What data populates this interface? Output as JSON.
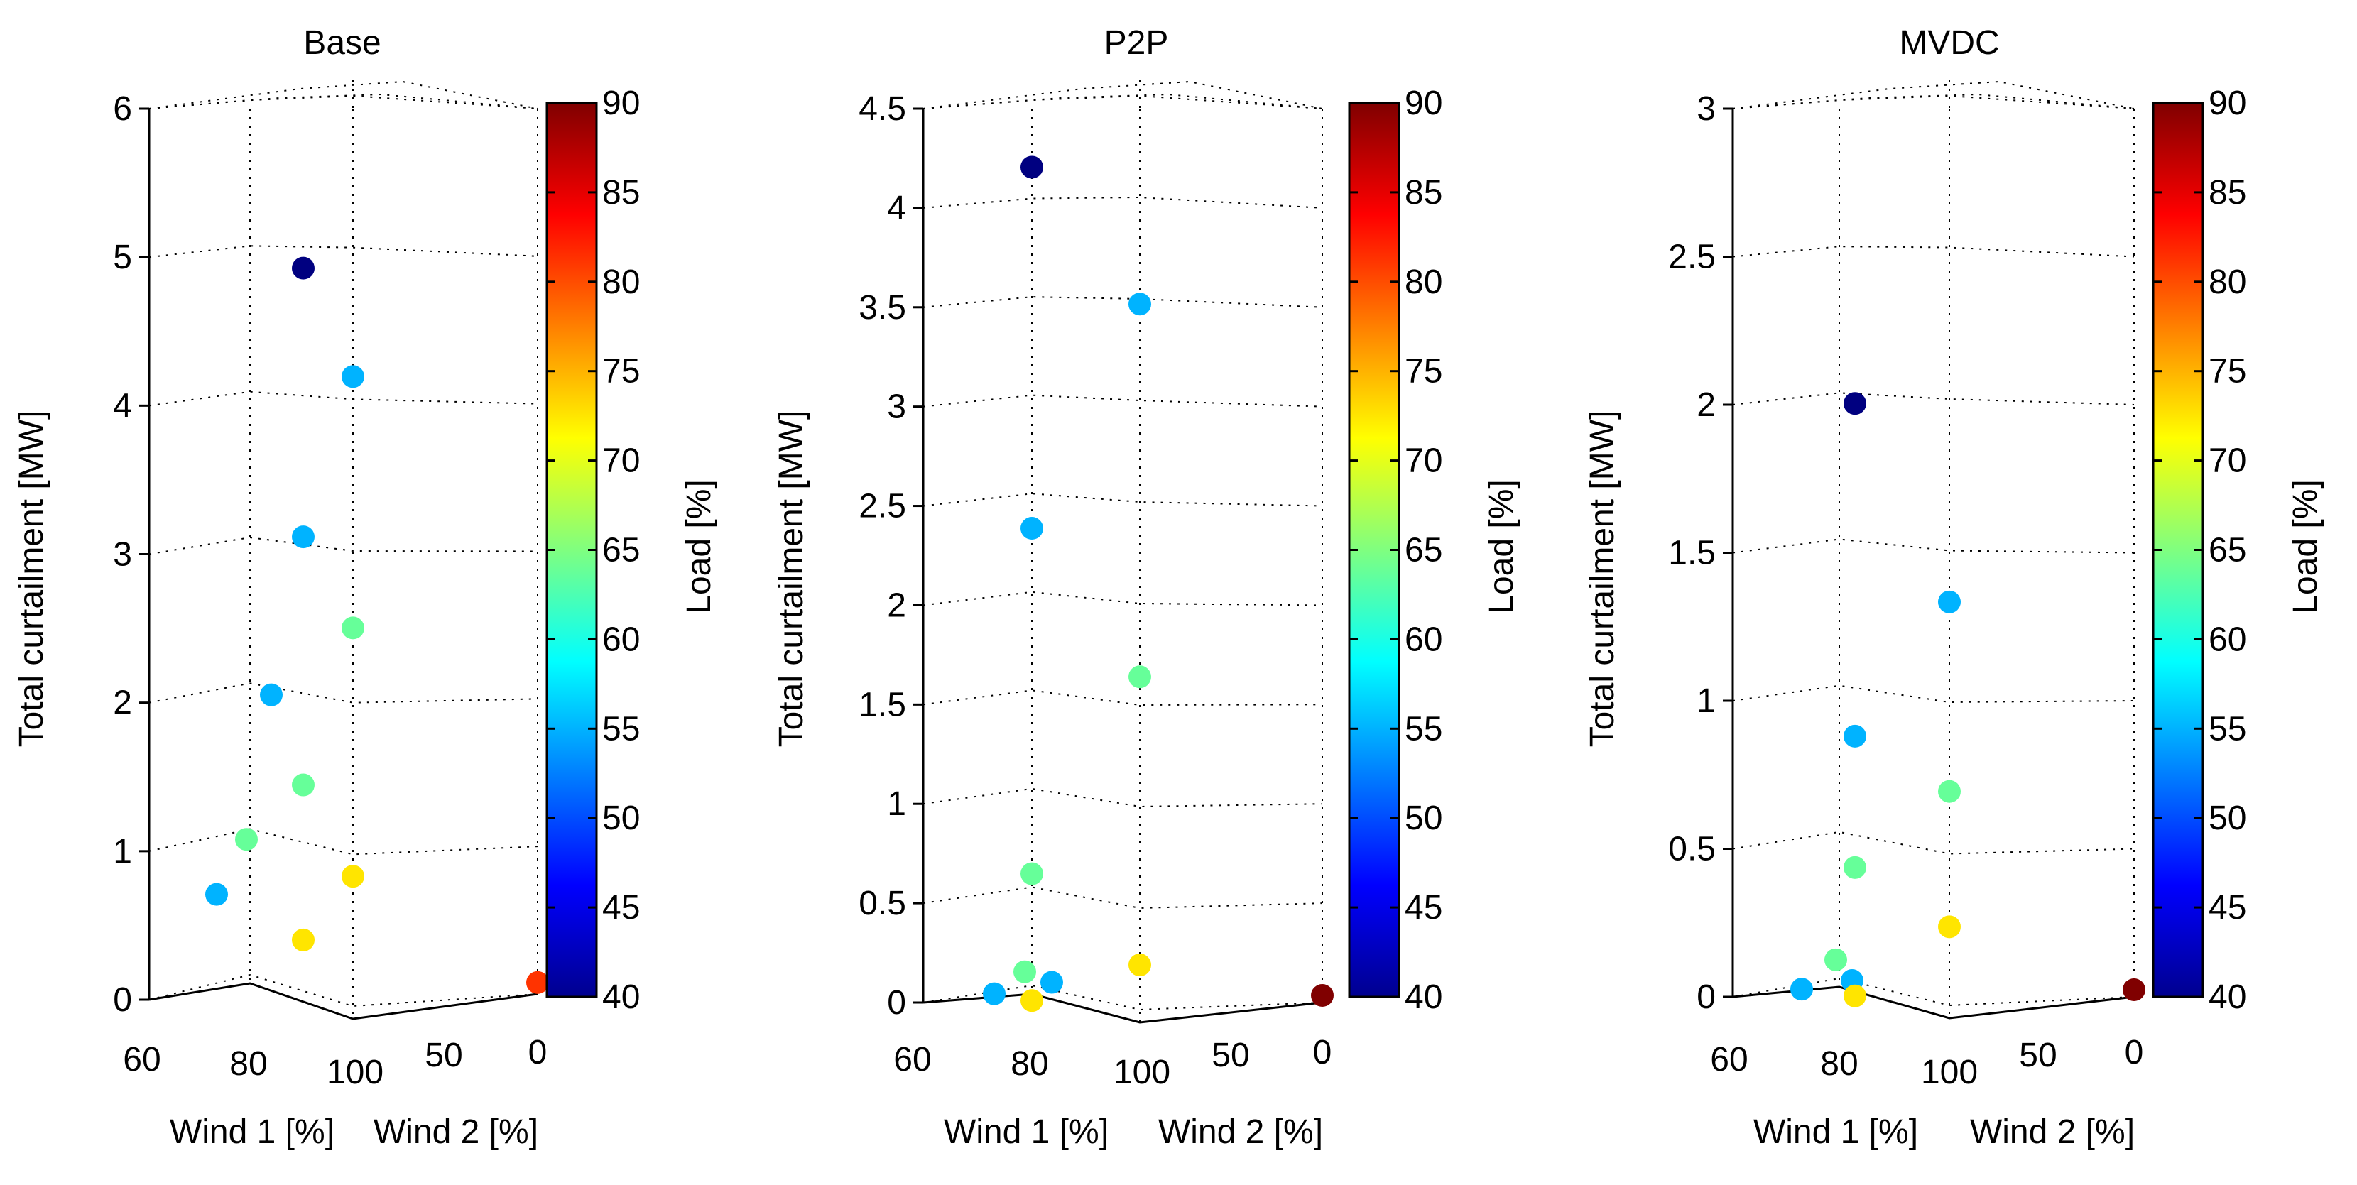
{
  "chart_data": [
    {
      "type": "scatter",
      "projection": "3d",
      "title": "Base",
      "zlabel": "Total curtailment [MW]",
      "xlabel": "Wind 1 [%]",
      "ylabel": "Wind 2 [%]",
      "colorbar_label": "Load [%]",
      "colormap": "jet",
      "zlim": [
        0,
        6
      ],
      "zticks": [
        "0",
        "1",
        "2",
        "3",
        "4",
        "5",
        "6"
      ],
      "wind1_ticks": [
        "60",
        "80",
        "100"
      ],
      "wind2_ticks": [
        "100",
        "50",
        "0"
      ],
      "colorbar_ticks": [
        "40",
        "45",
        "50",
        "55",
        "60",
        "65",
        "70",
        "75",
        "80",
        "85",
        "90"
      ],
      "clim": [
        40,
        90
      ],
      "points": [
        {
          "wind1": 80,
          "wind2": 100,
          "curtailment": 4.92,
          "load": 40
        },
        {
          "wind1": 100,
          "wind2": 100,
          "curtailment": 4.22,
          "load": 50
        },
        {
          "wind1": 80,
          "wind2": 100,
          "curtailment": 3.1,
          "load": 50
        },
        {
          "wind1": 100,
          "wind2": 100,
          "curtailment": 2.55,
          "load": 60
        },
        {
          "wind1": 80,
          "wind2": 75,
          "curtailment": 1.98,
          "load": 50
        },
        {
          "wind1": 80,
          "wind2": 100,
          "curtailment": 1.42,
          "load": 60
        },
        {
          "wind1": 80,
          "wind2": 50,
          "curtailment": 0.95,
          "load": 60
        },
        {
          "wind1": 100,
          "wind2": 100,
          "curtailment": 0.9,
          "load": 70
        },
        {
          "wind1": 80,
          "wind2": 25,
          "curtailment": 0.6,
          "load": 50
        },
        {
          "wind1": 80,
          "wind2": 100,
          "curtailment": 0.37,
          "load": 70
        },
        {
          "wind1": 100,
          "wind2": 0,
          "curtailment": 0.03,
          "load": 80
        }
      ]
    },
    {
      "type": "scatter",
      "projection": "3d",
      "title": "P2P",
      "zlabel": "Total curtailment [MW]",
      "xlabel": "Wind 1 [%]",
      "ylabel": "Wind 2 [%]",
      "colorbar_label": "Load [%]",
      "colormap": "jet",
      "zlim": [
        0,
        4.5
      ],
      "zticks": [
        "0",
        "0.5",
        "1",
        "1.5",
        "2",
        "2.5",
        "3",
        "3.5",
        "4",
        "4.5"
      ],
      "wind1_ticks": [
        "60",
        "80",
        "100"
      ],
      "wind2_ticks": [
        "100",
        "50",
        "0"
      ],
      "colorbar_ticks": [
        "40",
        "45",
        "50",
        "55",
        "60",
        "65",
        "70",
        "75",
        "80",
        "85",
        "90"
      ],
      "clim": [
        40,
        90
      ],
      "points": [
        {
          "wind1": 80,
          "wind2": 100,
          "curtailment": 4.2,
          "load": 40
        },
        {
          "wind1": 100,
          "wind2": 100,
          "curtailment": 3.53,
          "load": 50
        },
        {
          "wind1": 80,
          "wind2": 100,
          "curtailment": 2.35,
          "load": 50
        },
        {
          "wind1": 100,
          "wind2": 100,
          "curtailment": 1.68,
          "load": 60
        },
        {
          "wind1": 80,
          "wind2": 100,
          "curtailment": 0.58,
          "load": 60
        },
        {
          "wind1": 100,
          "wind2": 100,
          "curtailment": 0.25,
          "load": 70
        },
        {
          "wind1": 80,
          "wind2": 50,
          "curtailment": 0.08,
          "load": 60
        },
        {
          "wind1": 80,
          "wind2": 60,
          "curtailment": 0.05,
          "load": 50
        },
        {
          "wind1": 80,
          "wind2": 25,
          "curtailment": -0.02,
          "load": 50
        },
        {
          "wind1": 80,
          "wind2": 100,
          "curtailment": -0.07,
          "load": 70
        },
        {
          "wind1": 100,
          "wind2": 0,
          "curtailment": 0.0,
          "load": 90
        }
      ]
    },
    {
      "type": "scatter",
      "projection": "3d",
      "title": "MVDC",
      "zlabel": "Total curtailment [MW]",
      "xlabel": "Wind 1 [%]",
      "ylabel": "Wind 2 [%]",
      "colorbar_label": "Load [%]",
      "colormap": "jet",
      "zlim": [
        0,
        3
      ],
      "zticks": [
        "0",
        "0.5",
        "1",
        "1.5",
        "2",
        "2.5",
        "3"
      ],
      "wind1_ticks": [
        "60",
        "80",
        "100"
      ],
      "wind2_ticks": [
        "100",
        "50",
        "0"
      ],
      "colorbar_ticks": [
        "40",
        "45",
        "50",
        "55",
        "60",
        "65",
        "70",
        "75",
        "80",
        "85",
        "90"
      ],
      "clim": [
        40,
        90
      ],
      "points": [
        {
          "wind1": 80,
          "wind2": 100,
          "curtailment": 1.99,
          "load": 40
        },
        {
          "wind1": 100,
          "wind2": 100,
          "curtailment": 1.36,
          "load": 50
        },
        {
          "wind1": 80,
          "wind2": 100,
          "curtailment": 0.85,
          "load": 50
        },
        {
          "wind1": 100,
          "wind2": 100,
          "curtailment": 0.73,
          "load": 60
        },
        {
          "wind1": 80,
          "wind2": 100,
          "curtailment": 0.4,
          "load": 60
        },
        {
          "wind1": 100,
          "wind2": 100,
          "curtailment": 0.28,
          "load": 70
        },
        {
          "wind1": 80,
          "wind2": 50,
          "curtailment": 0.07,
          "load": 60
        },
        {
          "wind1": 80,
          "wind2": 60,
          "curtailment": 0.01,
          "load": 50
        },
        {
          "wind1": 80,
          "wind2": 25,
          "curtailment": -0.02,
          "load": 50
        },
        {
          "wind1": 80,
          "wind2": 100,
          "curtailment": -0.04,
          "load": 70
        },
        {
          "wind1": 100,
          "wind2": 0,
          "curtailment": 0.0,
          "load": 90
        }
      ]
    }
  ]
}
